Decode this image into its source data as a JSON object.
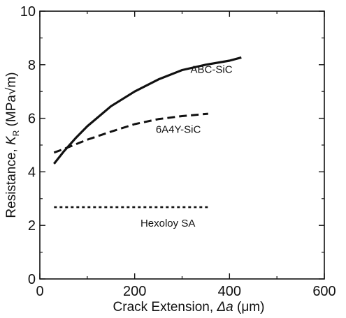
{
  "chart_data": {
    "type": "line",
    "title": "",
    "xlabel_parts": [
      "Crack Extension, ",
      "Δa",
      " (μm)"
    ],
    "ylabel_parts": [
      "Resistance, ",
      "K",
      "R",
      " (MPa√m)"
    ],
    "xlim": [
      0,
      600
    ],
    "ylim": [
      0,
      10
    ],
    "xticks": [
      "0",
      "200",
      "400",
      "600"
    ],
    "yticks": [
      "0",
      "2",
      "4",
      "6",
      "8",
      "10"
    ],
    "grid": false,
    "legend": "none",
    "series": [
      {
        "name": "ABC-SiC",
        "style": "solid",
        "x": [
          30,
          50,
          75,
          100,
          150,
          200,
          250,
          300,
          350,
          400,
          425
        ],
        "y": [
          4.3,
          4.75,
          5.25,
          5.7,
          6.45,
          7.0,
          7.45,
          7.8,
          8.0,
          8.15,
          8.27
        ]
      },
      {
        "name": "6A4Y-SiC",
        "style": "dashed",
        "x": [
          30,
          50,
          100,
          150,
          200,
          250,
          300,
          355
        ],
        "y": [
          4.72,
          4.85,
          5.2,
          5.5,
          5.78,
          5.97,
          6.08,
          6.17
        ]
      },
      {
        "name": "Hexoloy SA",
        "style": "dotted",
        "x": [
          30,
          355
        ],
        "y": [
          2.68,
          2.68
        ]
      }
    ]
  }
}
